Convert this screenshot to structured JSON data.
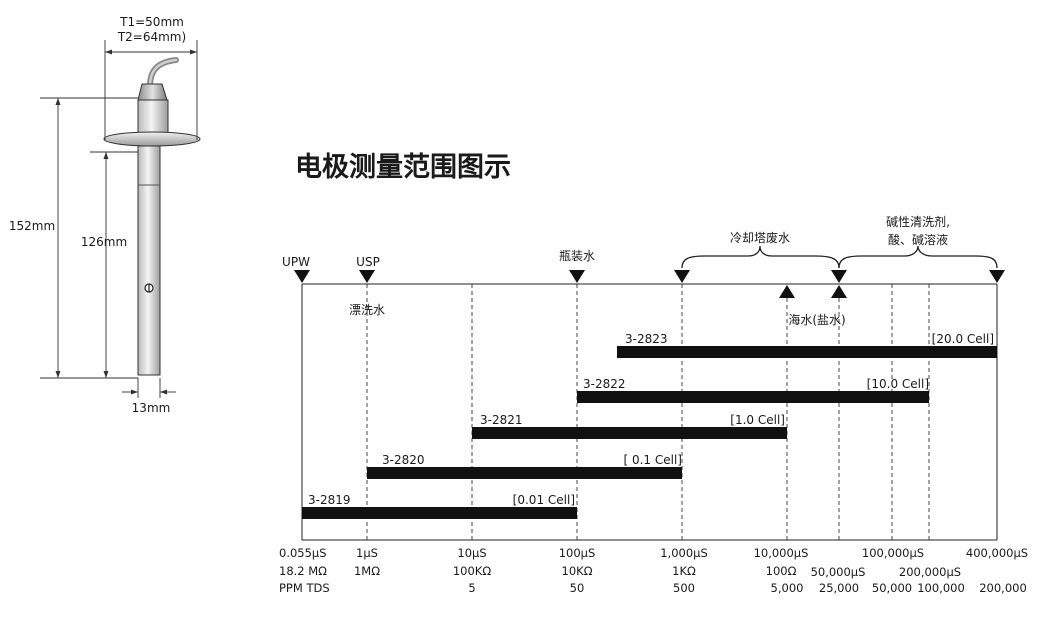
{
  "title": "电极测量范围图示",
  "probe": {
    "t1": "T1=50mm",
    "t2": "T2=64mm)",
    "h_total": "152mm",
    "h_immersion": "126mm",
    "diameter": "13mm"
  },
  "top_labels": {
    "upw": "UPW",
    "usp": "USP",
    "rinse": "漂洗水",
    "bottled": "瓶装水",
    "cooling": "冷却塔废水",
    "cleaning_1": "碱性清洗剂,",
    "cleaning_2": "酸、碱溶液",
    "seawater": "海水(盐水)"
  },
  "ranges": [
    {
      "model": "3-2823",
      "cell": "[20.0 Cell]"
    },
    {
      "model": "3-2822",
      "cell": "[10.0 Cell]"
    },
    {
      "model": "3-2821",
      "cell": "[1.0 Cell]"
    },
    {
      "model": "3-2820",
      "cell": "[ 0.1 Cell]"
    },
    {
      "model": "3-2819",
      "cell": "[0.01 Cell]"
    }
  ],
  "scale": {
    "cond": [
      "0.055µS",
      "1µS",
      "10µS",
      "100µS",
      "1,000µS",
      "10,000µS",
      "100,000µS",
      "400,000µS"
    ],
    "res": [
      "18.2 MΩ",
      "1MΩ",
      "100KΩ",
      "10KΩ",
      "1KΩ",
      "100Ω"
    ],
    "ppm_label": "PPM TDS",
    "ppm": [
      "5",
      "50",
      "500",
      "5,000"
    ],
    "extra_cond": [
      "50,000µS",
      "200,000µS"
    ],
    "extra_ppm": [
      "25,000",
      "50,000",
      "100,000",
      "200,000"
    ]
  }
}
